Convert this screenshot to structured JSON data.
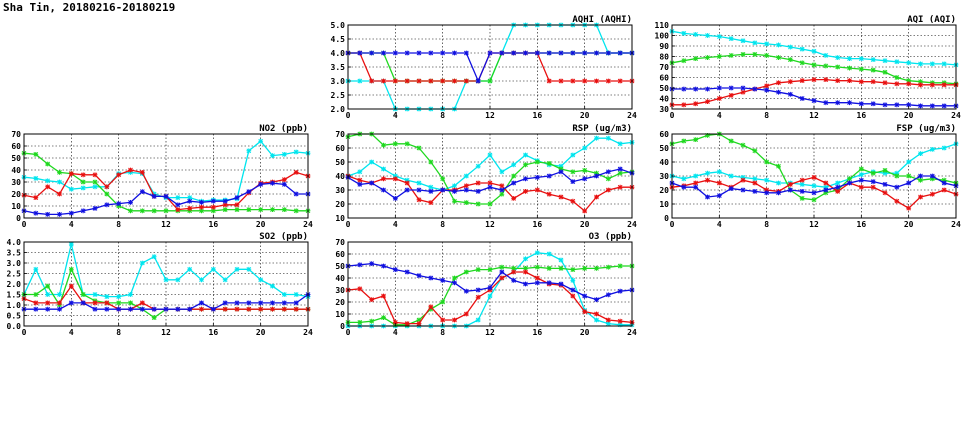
{
  "page": {
    "title": "Sha Tin, 20180216-20180219"
  },
  "series_colors": {
    "cyan": "#00e5ee",
    "green": "#1fd81f",
    "red": "#e81010",
    "blue": "#1010e0"
  },
  "chart_data": [
    {
      "id": "no2",
      "type": "line",
      "title": "NO2 (ppb)",
      "xlim": [
        0,
        24
      ],
      "xticks": [
        0,
        4,
        8,
        12,
        16,
        20,
        24
      ],
      "ylim": [
        0,
        70
      ],
      "yticks": [
        0,
        10,
        20,
        30,
        40,
        50,
        60,
        70
      ],
      "grid": true,
      "series": [
        {
          "color": "cyan",
          "values": [
            34,
            33,
            31,
            30,
            24,
            25,
            26,
            26,
            37,
            38,
            37,
            20,
            17,
            17,
            17,
            14,
            15,
            15,
            16,
            56,
            64,
            52,
            53,
            55,
            54
          ]
        },
        {
          "color": "green",
          "values": [
            54,
            53,
            45,
            38,
            37,
            30,
            30,
            20,
            10,
            6,
            6,
            6,
            6,
            6,
            6,
            6,
            6,
            7,
            7,
            7,
            7,
            7,
            7,
            6,
            6
          ]
        },
        {
          "color": "red",
          "values": [
            19,
            17,
            26,
            20,
            37,
            36,
            36,
            26,
            36,
            40,
            38,
            18,
            18,
            7,
            8,
            9,
            9,
            11,
            11,
            21,
            29,
            30,
            32,
            38,
            35
          ]
        },
        {
          "color": "blue",
          "values": [
            6,
            4,
            3,
            3,
            4,
            6,
            8,
            11,
            12,
            13,
            22,
            18,
            18,
            11,
            14,
            13,
            14,
            14,
            17,
            22,
            28,
            29,
            28,
            20,
            20
          ]
        }
      ]
    },
    {
      "id": "so2",
      "type": "line",
      "title": "SO2 (ppb)",
      "xlim": [
        0,
        24
      ],
      "xticks": [
        0,
        4,
        8,
        12,
        16,
        20,
        24
      ],
      "ylim": [
        0,
        4.0
      ],
      "yticks": [
        0,
        0.5,
        1.0,
        1.5,
        2.0,
        2.5,
        3.0,
        3.5,
        4.0
      ],
      "grid": true,
      "series": [
        {
          "color": "cyan",
          "values": [
            1.5,
            2.7,
            1.5,
            1.5,
            3.9,
            1.5,
            1.5,
            1.4,
            1.4,
            1.5,
            3.0,
            3.3,
            2.2,
            2.2,
            2.7,
            2.2,
            2.7,
            2.2,
            2.7,
            2.7,
            2.2,
            1.9,
            1.5,
            1.5,
            1.4
          ]
        },
        {
          "color": "green",
          "values": [
            1.5,
            1.5,
            1.9,
            1.0,
            2.7,
            1.5,
            1.2,
            1.1,
            1.1,
            1.1,
            0.8,
            0.4,
            0.8,
            0.8,
            0.8,
            0.8,
            0.8,
            0.8,
            0.8,
            0.8,
            0.8,
            0.8,
            0.8,
            0.8,
            0.8
          ]
        },
        {
          "color": "red",
          "values": [
            1.3,
            1.1,
            1.1,
            1.1,
            1.9,
            1.1,
            1.1,
            1.1,
            0.8,
            0.8,
            1.1,
            0.8,
            0.8,
            0.8,
            0.8,
            0.8,
            0.8,
            0.8,
            0.8,
            0.8,
            0.8,
            0.8,
            0.8,
            0.8,
            0.8
          ]
        },
        {
          "color": "blue",
          "values": [
            0.8,
            0.8,
            0.8,
            0.8,
            1.1,
            1.1,
            0.8,
            0.8,
            0.8,
            0.8,
            0.8,
            0.8,
            0.8,
            0.8,
            0.8,
            1.1,
            0.8,
            1.1,
            1.1,
            1.1,
            1.1,
            1.1,
            1.1,
            1.1,
            1.5
          ]
        }
      ]
    },
    {
      "id": "aqhi",
      "type": "line",
      "title": "AQHI (AQHI)",
      "xlim": [
        0,
        24
      ],
      "xticks": [
        0,
        4,
        8,
        12,
        16,
        20,
        24
      ],
      "ylim": [
        2.0,
        5.0
      ],
      "yticks": [
        2.0,
        2.5,
        3.0,
        3.5,
        4.0,
        4.5,
        5.0
      ],
      "grid": true,
      "series": [
        {
          "color": "cyan",
          "values": [
            3,
            3,
            3,
            3,
            2,
            2,
            2,
            2,
            2,
            2,
            3,
            3,
            3,
            4,
            5,
            5,
            5,
            5,
            5,
            5,
            5,
            5,
            4,
            4,
            4
          ]
        },
        {
          "color": "green",
          "values": [
            4,
            4,
            4,
            4,
            3,
            3,
            3,
            3,
            3,
            3,
            3,
            3,
            3,
            4,
            4,
            4,
            4,
            4,
            4,
            4,
            4,
            4,
            4,
            4,
            4
          ]
        },
        {
          "color": "red",
          "values": [
            4,
            4,
            3,
            3,
            3,
            3,
            3,
            3,
            3,
            3,
            3,
            3,
            4,
            4,
            4,
            4,
            4,
            3,
            3,
            3,
            3,
            3,
            3,
            3,
            3
          ]
        },
        {
          "color": "blue",
          "values": [
            4,
            4,
            4,
            4,
            4,
            4,
            4,
            4,
            4,
            4,
            4,
            3,
            4,
            4,
            4,
            4,
            4,
            4,
            4,
            4,
            4,
            4,
            4,
            4,
            4
          ]
        }
      ]
    },
    {
      "id": "rsp",
      "type": "line",
      "title": "RSP (ug/m3)",
      "xlim": [
        0,
        24
      ],
      "xticks": [
        0,
        4,
        8,
        12,
        16,
        20,
        24
      ],
      "ylim": [
        10,
        70
      ],
      "yticks": [
        10,
        20,
        30,
        40,
        50,
        60,
        70
      ],
      "grid": true,
      "series": [
        {
          "color": "cyan",
          "values": [
            40,
            43,
            50,
            45,
            40,
            37,
            35,
            32,
            30,
            33,
            40,
            47,
            55,
            43,
            48,
            55,
            51,
            48,
            47,
            55,
            60,
            67,
            67,
            63,
            64
          ]
        },
        {
          "color": "green",
          "values": [
            68,
            70,
            70,
            62,
            63,
            63,
            60,
            50,
            38,
            22,
            21,
            20,
            20,
            27,
            40,
            48,
            50,
            49,
            45,
            43,
            44,
            42,
            38,
            42,
            43
          ]
        },
        {
          "color": "red",
          "values": [
            40,
            37,
            35,
            38,
            38,
            35,
            23,
            21,
            30,
            30,
            33,
            35,
            35,
            33,
            24,
            29,
            30,
            27,
            25,
            22,
            15,
            25,
            30,
            32,
            32
          ]
        },
        {
          "color": "blue",
          "values": [
            39,
            34,
            35,
            30,
            24,
            30,
            30,
            29,
            30,
            29,
            30,
            29,
            32,
            30,
            35,
            38,
            39,
            40,
            43,
            36,
            38,
            40,
            43,
            45,
            42
          ]
        }
      ]
    },
    {
      "id": "o3",
      "type": "line",
      "title": "O3 (ppb)",
      "xlim": [
        0,
        24
      ],
      "xticks": [
        0,
        4,
        8,
        12,
        16,
        20,
        24
      ],
      "ylim": [
        0,
        70
      ],
      "yticks": [
        0,
        10,
        20,
        30,
        40,
        50,
        60,
        70
      ],
      "grid": true,
      "series": [
        {
          "color": "cyan",
          "values": [
            0,
            0,
            0,
            0,
            0,
            0,
            0,
            0,
            0,
            0,
            0,
            5,
            25,
            40,
            45,
            56,
            61,
            60,
            55,
            38,
            13,
            5,
            2,
            1,
            1
          ]
        },
        {
          "color": "green",
          "values": [
            3,
            3,
            4,
            7,
            1,
            1,
            5,
            14,
            20,
            40,
            45,
            47,
            47,
            49,
            48,
            48,
            49,
            48,
            48,
            47,
            48,
            48,
            49,
            50,
            50
          ]
        },
        {
          "color": "red",
          "values": [
            30,
            31,
            22,
            25,
            3,
            2,
            2,
            16,
            5,
            5,
            10,
            24,
            30,
            40,
            45,
            45,
            40,
            35,
            34,
            25,
            12,
            10,
            5,
            4,
            3
          ]
        },
        {
          "color": "blue",
          "values": [
            50,
            51,
            52,
            50,
            47,
            45,
            42,
            40,
            38,
            36,
            29,
            30,
            32,
            45,
            38,
            35,
            36,
            36,
            35,
            30,
            25,
            22,
            26,
            29,
            30
          ]
        }
      ]
    },
    {
      "id": "aqi",
      "type": "line",
      "title": "AQI (AQI)",
      "xlim": [
        0,
        24
      ],
      "xticks": [
        0,
        4,
        8,
        12,
        16,
        20,
        24
      ],
      "ylim": [
        30,
        110
      ],
      "yticks": [
        30,
        40,
        50,
        60,
        70,
        80,
        90,
        100,
        110
      ],
      "grid": true,
      "series": [
        {
          "color": "cyan",
          "values": [
            104,
            102,
            101,
            100,
            99,
            97,
            95,
            93,
            92,
            91,
            89,
            87,
            85,
            81,
            79,
            78,
            78,
            77,
            76,
            75,
            74,
            73,
            73,
            73,
            72
          ]
        },
        {
          "color": "green",
          "values": [
            74,
            76,
            78,
            79,
            80,
            81,
            82,
            82,
            81,
            79,
            77,
            74,
            72,
            71,
            70,
            69,
            68,
            67,
            65,
            60,
            57,
            56,
            55,
            55,
            54
          ]
        },
        {
          "color": "red",
          "values": [
            34,
            34,
            35,
            37,
            40,
            43,
            46,
            49,
            52,
            55,
            56,
            57,
            58,
            58,
            57,
            57,
            56,
            56,
            55,
            54,
            54,
            53,
            53,
            53,
            53
          ]
        },
        {
          "color": "blue",
          "values": [
            49,
            49,
            49,
            49,
            50,
            50,
            50,
            49,
            48,
            46,
            44,
            40,
            38,
            36,
            36,
            36,
            35,
            35,
            34,
            34,
            34,
            33,
            33,
            33,
            33
          ]
        }
      ]
    },
    {
      "id": "fsp",
      "type": "line",
      "title": "FSP (ug/m3)",
      "xlim": [
        0,
        24
      ],
      "xticks": [
        0,
        4,
        8,
        12,
        16,
        20,
        24
      ],
      "ylim": [
        0,
        60
      ],
      "yticks": [
        0,
        10,
        20,
        30,
        40,
        50,
        60
      ],
      "grid": true,
      "series": [
        {
          "color": "cyan",
          "values": [
            30,
            28,
            30,
            32,
            33,
            30,
            29,
            28,
            27,
            25,
            25,
            24,
            23,
            22,
            25,
            28,
            31,
            33,
            32,
            32,
            40,
            46,
            49,
            50,
            53
          ]
        },
        {
          "color": "green",
          "values": [
            53,
            55,
            56,
            59,
            60,
            55,
            52,
            48,
            40,
            37,
            20,
            14,
            13,
            18,
            20,
            28,
            35,
            32,
            34,
            30,
            30,
            27,
            28,
            27,
            25
          ]
        },
        {
          "color": "red",
          "values": [
            22,
            23,
            25,
            27,
            25,
            22,
            27,
            25,
            20,
            19,
            24,
            27,
            29,
            25,
            19,
            25,
            22,
            22,
            18,
            12,
            7,
            15,
            17,
            20,
            17
          ]
        },
        {
          "color": "blue",
          "values": [
            25,
            22,
            22,
            15,
            16,
            21,
            20,
            19,
            18,
            18,
            20,
            19,
            18,
            20,
            22,
            25,
            27,
            26,
            24,
            22,
            25,
            30,
            30,
            25,
            23
          ]
        }
      ]
    }
  ]
}
